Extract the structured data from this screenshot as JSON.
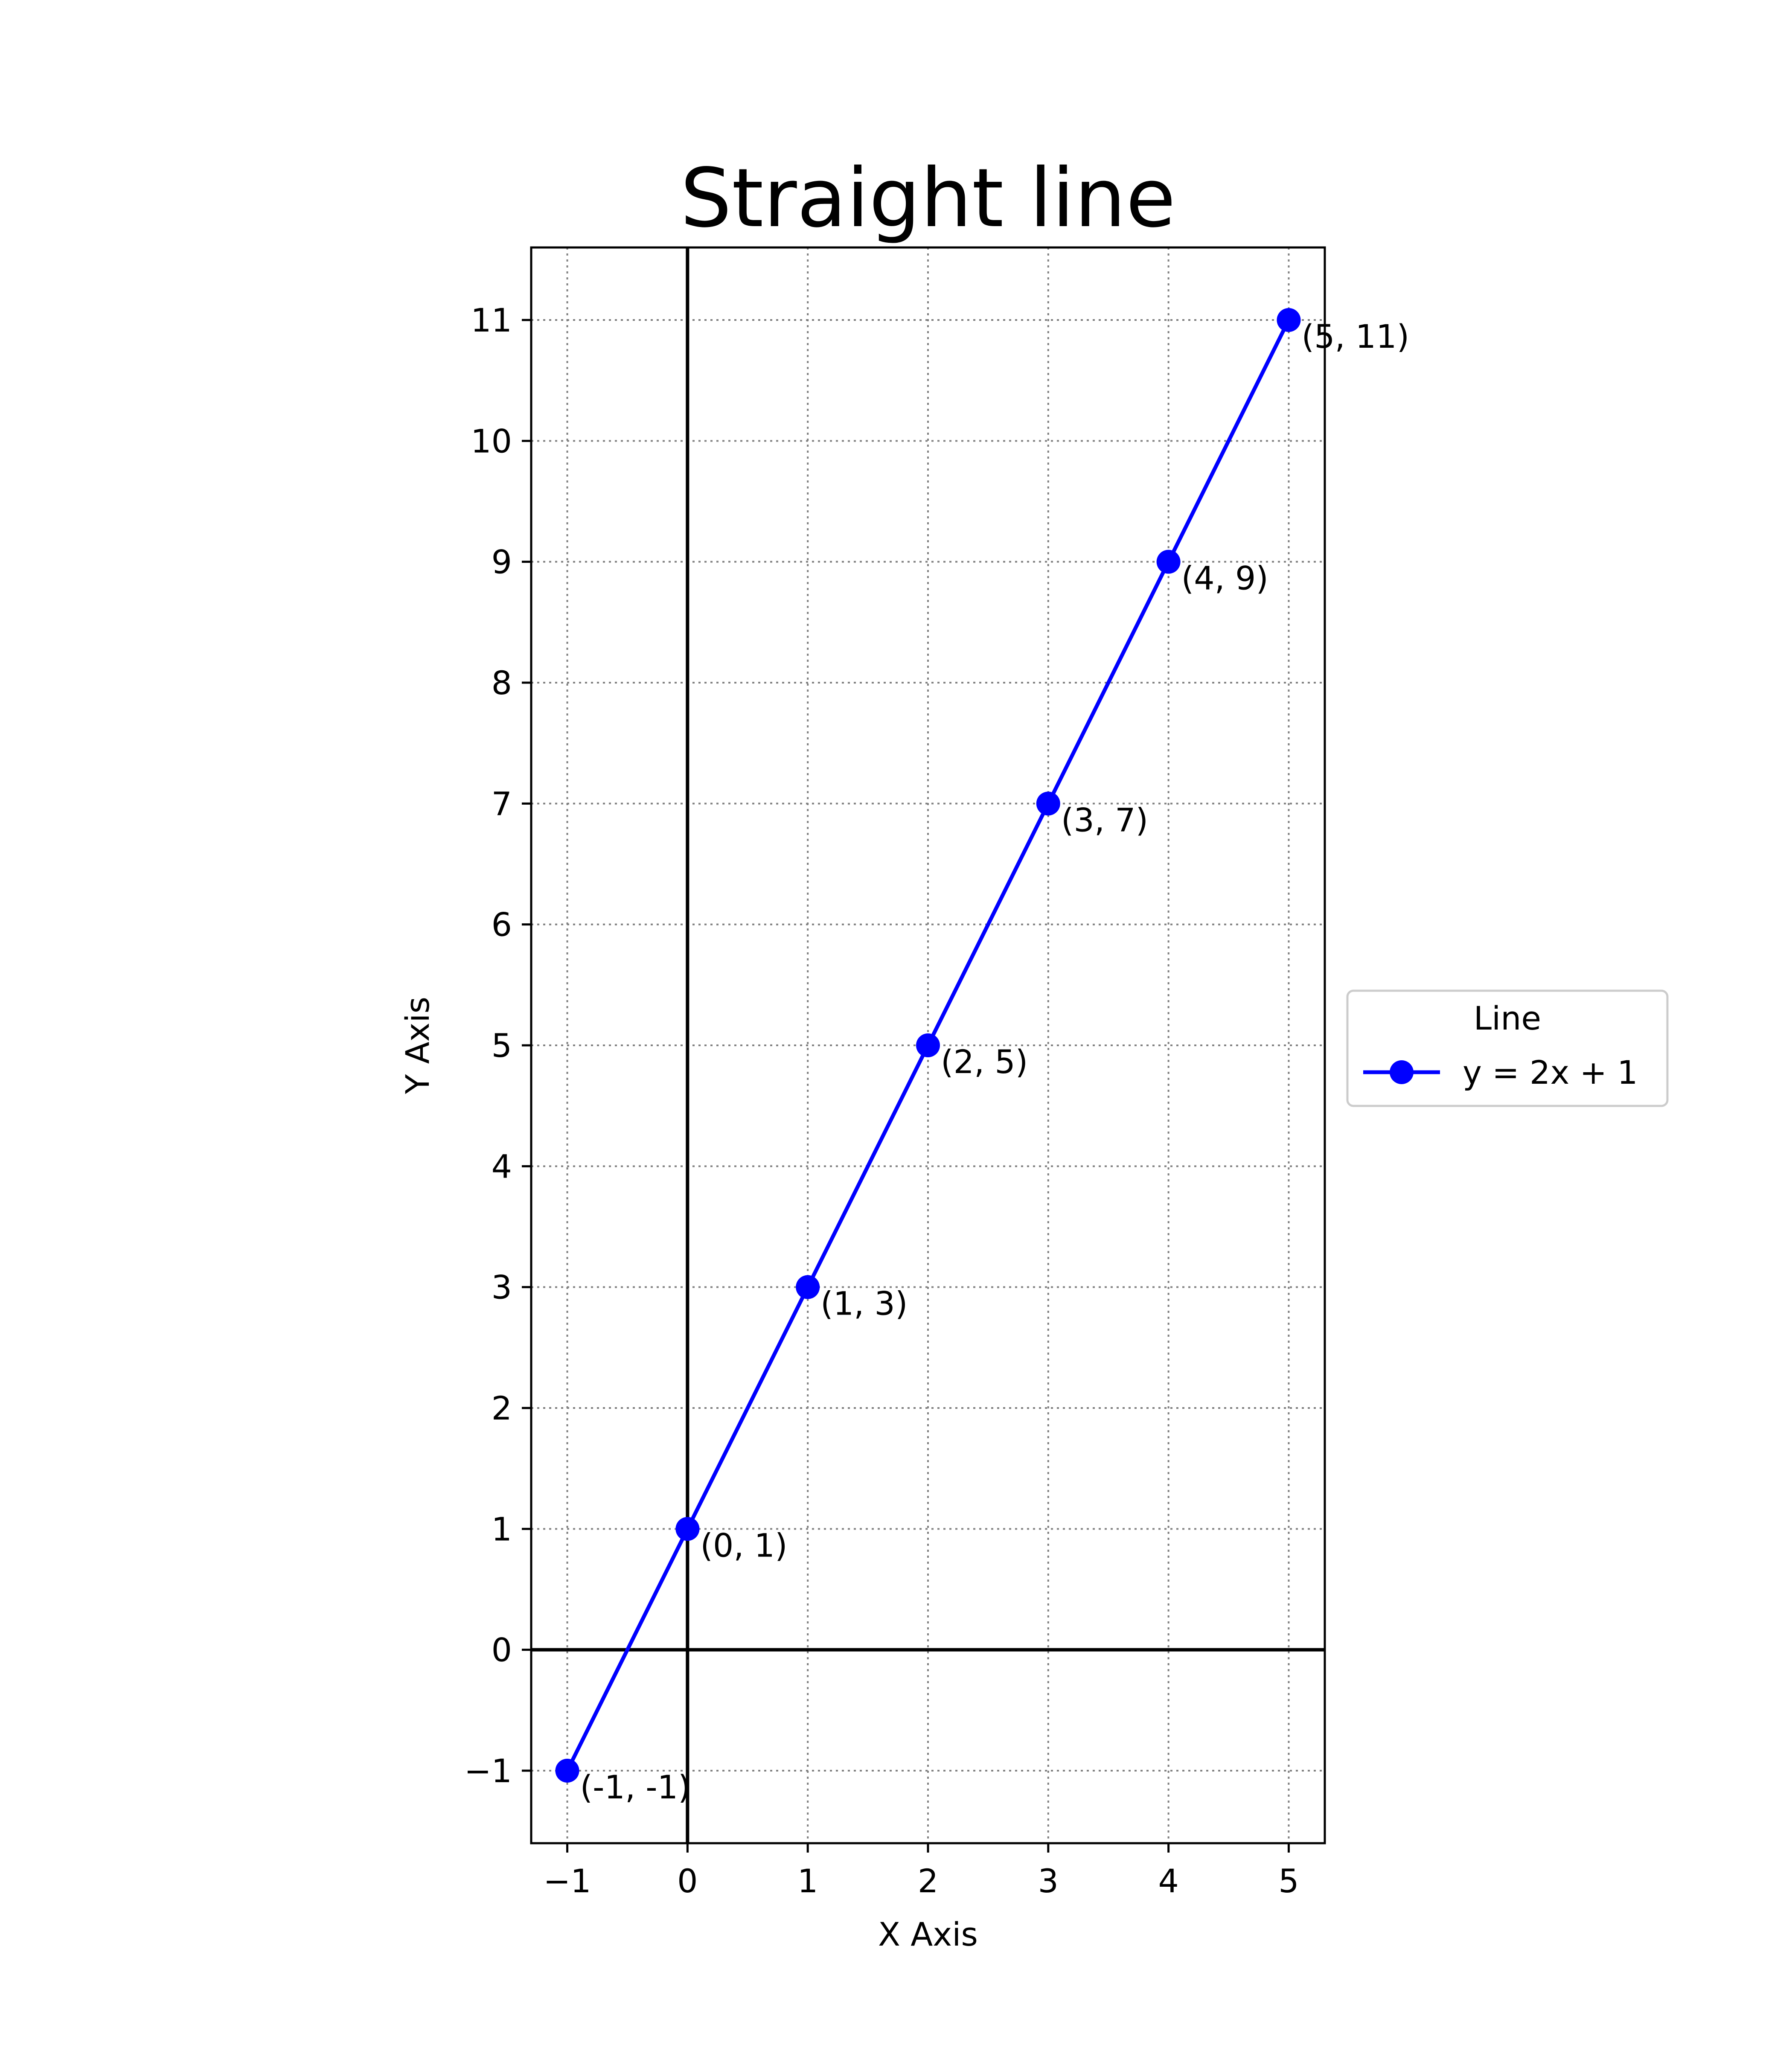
{
  "chart_data": {
    "type": "line",
    "title": "Straight line",
    "xlabel": "X Axis",
    "ylabel": "Y Axis",
    "xlim": [
      -1.3,
      5.3
    ],
    "ylim": [
      -1.6,
      11.6
    ],
    "x_ticks": [
      -1,
      0,
      1,
      2,
      3,
      4,
      5
    ],
    "x_tick_labels": [
      "−1",
      "0",
      "1",
      "2",
      "3",
      "4",
      "5"
    ],
    "y_ticks": [
      -1,
      0,
      1,
      2,
      3,
      4,
      5,
      6,
      7,
      8,
      9,
      10,
      11
    ],
    "y_tick_labels": [
      "−1",
      "0",
      "1",
      "2",
      "3",
      "4",
      "5",
      "6",
      "7",
      "8",
      "9",
      "10",
      "11"
    ],
    "grid": true,
    "grid_style": "dotted",
    "axis_lines_at_zero": true,
    "series": [
      {
        "name": "y = 2x + 1",
        "color": "#0000ff",
        "marker": "circle",
        "x": [
          -1,
          0,
          1,
          2,
          3,
          4,
          5
        ],
        "y": [
          -1,
          1,
          3,
          5,
          7,
          9,
          11
        ],
        "point_labels": [
          "(-1, -1)",
          "(0, 1)",
          "(1, 3)",
          "(2, 5)",
          "(3, 7)",
          "(4, 9)",
          "(5, 11)"
        ]
      }
    ],
    "legend": {
      "title": "Line",
      "placement": "outside-right",
      "entries": [
        "y = 2x + 1"
      ]
    }
  }
}
